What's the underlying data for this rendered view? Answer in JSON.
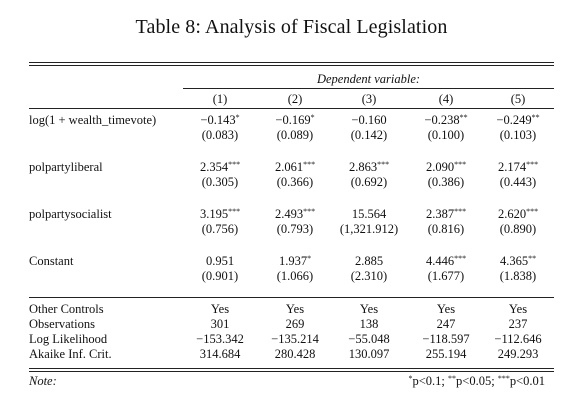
{
  "title": "Table 8: Analysis of Fiscal Legislation",
  "dependent_variable_label": "Dependent variable:",
  "columns": [
    "(1)",
    "(2)",
    "(3)",
    "(4)",
    "(5)"
  ],
  "coefficients": [
    {
      "label": "log(1 + wealth_timevote)",
      "estimates": [
        {
          "value": "−0.143",
          "stars": "*"
        },
        {
          "value": "−0.169",
          "stars": "*"
        },
        {
          "value": "−0.160",
          "stars": ""
        },
        {
          "value": "−0.238",
          "stars": "**"
        },
        {
          "value": "−0.249",
          "stars": "**"
        }
      ],
      "std_errors": [
        "(0.083)",
        "(0.089)",
        "(0.142)",
        "(0.100)",
        "(0.103)"
      ]
    },
    {
      "label": "polpartyliberal",
      "estimates": [
        {
          "value": "2.354",
          "stars": "***"
        },
        {
          "value": "2.061",
          "stars": "***"
        },
        {
          "value": "2.863",
          "stars": "***"
        },
        {
          "value": "2.090",
          "stars": "***"
        },
        {
          "value": "2.174",
          "stars": "***"
        }
      ],
      "std_errors": [
        "(0.305)",
        "(0.366)",
        "(0.692)",
        "(0.386)",
        "(0.443)"
      ]
    },
    {
      "label": "polpartysocialist",
      "estimates": [
        {
          "value": "3.195",
          "stars": "***"
        },
        {
          "value": "2.493",
          "stars": "***"
        },
        {
          "value": "15.564",
          "stars": ""
        },
        {
          "value": "2.387",
          "stars": "***"
        },
        {
          "value": "2.620",
          "stars": "***"
        }
      ],
      "std_errors": [
        "(0.756)",
        "(0.793)",
        "(1,321.912)",
        "(0.816)",
        "(0.890)"
      ]
    },
    {
      "label": "Constant",
      "estimates": [
        {
          "value": "0.951",
          "stars": ""
        },
        {
          "value": "1.937",
          "stars": "*"
        },
        {
          "value": "2.885",
          "stars": ""
        },
        {
          "value": "4.446",
          "stars": "***"
        },
        {
          "value": "4.365",
          "stars": "**"
        }
      ],
      "std_errors": [
        "(0.901)",
        "(1.066)",
        "(2.310)",
        "(1.677)",
        "(1.838)"
      ]
    }
  ],
  "statistics": [
    {
      "label": "Other Controls",
      "values": [
        "Yes",
        "Yes",
        "Yes",
        "Yes",
        "Yes"
      ]
    },
    {
      "label": "Observations",
      "values": [
        "301",
        "269",
        "138",
        "247",
        "237"
      ]
    },
    {
      "label": "Log Likelihood",
      "values": [
        "−153.342",
        "−135.214",
        "−55.048",
        "−118.597",
        "−112.646"
      ]
    },
    {
      "label": "Akaike Inf. Crit.",
      "values": [
        "314.684",
        "280.428",
        "130.097",
        "255.194",
        "249.293"
      ]
    }
  ],
  "note": {
    "label": "Note:",
    "items": [
      {
        "stars": "*",
        "text": "p<0.1; "
      },
      {
        "stars": "**",
        "text": "p<0.05; "
      },
      {
        "stars": "***",
        "text": "p<0.01"
      }
    ]
  }
}
